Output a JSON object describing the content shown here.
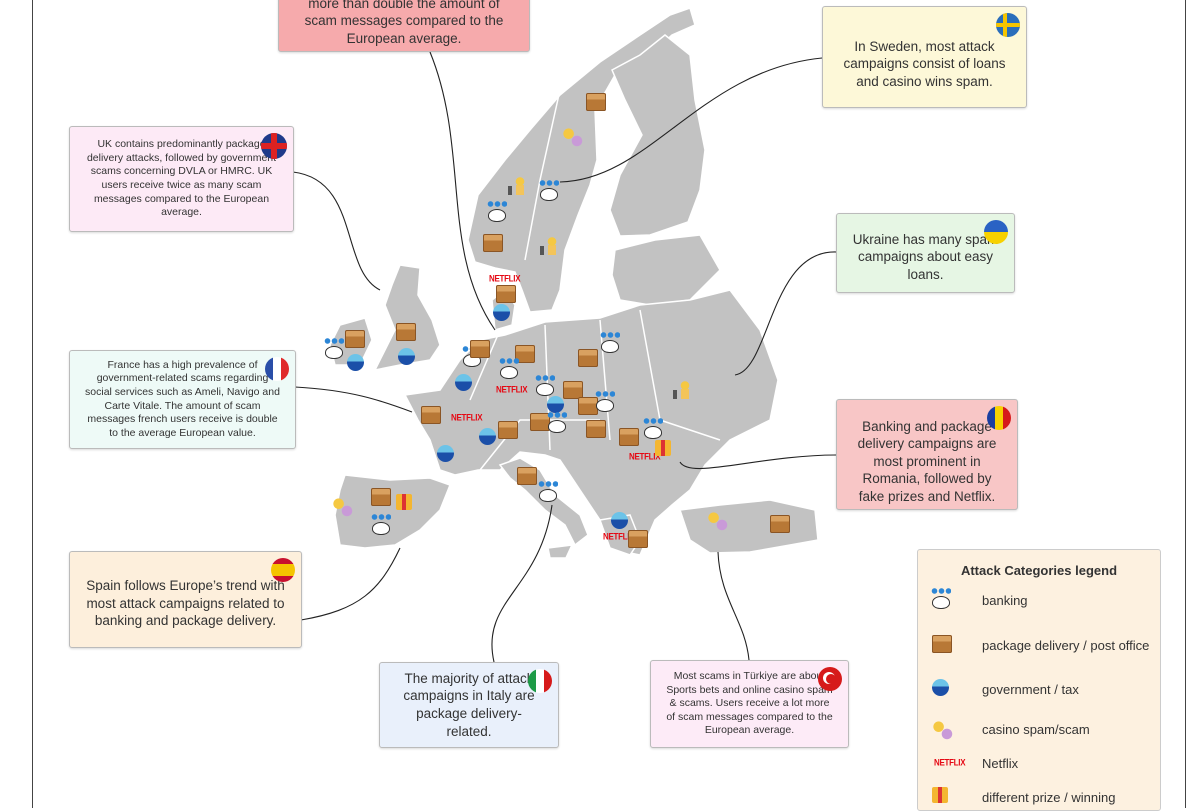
{
  "callouts": {
    "top": "more than double the amount of scam messages compared to the European average.",
    "sweden": "In Sweden, most attack campaigns consist of loans and casino wins spam.",
    "uk": "UK contains predominantly package delivery attacks, followed by government scams concerning DVLA or HMRC. UK users receive twice as many scam messages compared to the European average.",
    "ukraine": "Ukraine has many spam campaigns about easy loans.",
    "france": "France has a high prevalence of government-related scams regarding social services such as Ameli, Navigo and Carte Vitale. The amount of scam messages french users receive is double to the average European value.",
    "romania": "Banking and package delivery campaigns are most prominent in Romania, followed by fake prizes and Netflix.",
    "spain": "Spain follows Europe’s trend with most attack campaigns related to banking and package delivery.",
    "italy": "The majority of attack campaigns in Italy are package delivery-related.",
    "turkiye": "Most scams in Türkiye are about Sports bets and online casino spam & scams. Users receive a lot more of scam messages compared to the European average."
  },
  "legend": {
    "title": "Attack Categories legend",
    "netflix_logo": "NETFLIX",
    "items": [
      {
        "icon": "banking-icon",
        "label": "banking"
      },
      {
        "icon": "package-icon",
        "label": "package delivery / post office"
      },
      {
        "icon": "government-icon",
        "label": "government / tax"
      },
      {
        "icon": "casino-icon",
        "label": "casino spam/scam"
      },
      {
        "icon": "netflix-icon",
        "label": "Netflix"
      },
      {
        "icon": "prize-icon",
        "label": "different prize / winning"
      }
    ]
  },
  "colors": {
    "land": "#c2c2c2",
    "border": "#ffffff",
    "top_box": "#f6aaac",
    "sweden_box": "#fdf8d8",
    "uk_box": "#fdeaf6",
    "ukraine_box": "#e6f6e4",
    "france_box": "#eefaf7",
    "romania_box": "#f8c6c6",
    "spain_box": "#fdefdc",
    "italy_box": "#e9f0fb",
    "turkiye_box": "#fdebf7",
    "legend_box": "#fdf1e0"
  }
}
